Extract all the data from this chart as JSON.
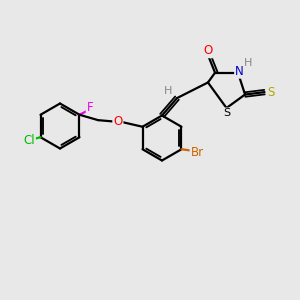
{
  "background_color": "#e8e8e8",
  "bond_color": "#000000",
  "bond_width": 1.6,
  "atom_colors": {
    "Br": "#cc6600",
    "Cl": "#00bb00",
    "F": "#ee00ee",
    "O": "#ff0000",
    "N": "#0000cc",
    "S_yellow": "#aaaa00",
    "S_ring": "#000000",
    "H": "#888888",
    "C": "#000000"
  },
  "figsize": [
    3.0,
    3.0
  ],
  "dpi": 100
}
